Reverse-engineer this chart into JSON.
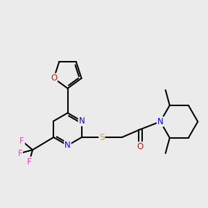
{
  "background_color": "#ebebeb",
  "bond_color": "#000000",
  "atom_colors": {
    "O": "#ff0000",
    "N": "#0000ff",
    "S": "#ccaa00",
    "F": "#ee44bb",
    "C": "#000000"
  },
  "bond_width": 1.5,
  "font_size_atoms": 8.5,
  "figsize": [
    3.0,
    3.0
  ],
  "dpi": 100
}
